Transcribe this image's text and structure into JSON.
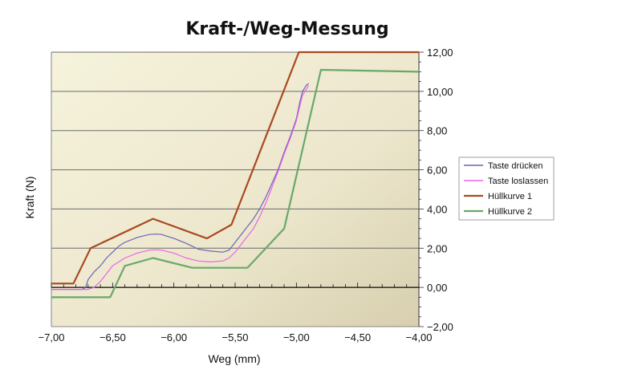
{
  "chart_data": {
    "type": "line",
    "title": "Kraft-/Weg-Messung",
    "xlabel": "Weg (mm)",
    "ylabel": "Kraft (N)",
    "xlim": [
      -7.0,
      -4.0
    ],
    "ylim": [
      -2.0,
      12.0
    ],
    "x_ticks": [
      "−7,00",
      "−6,50",
      "−6,00",
      "−5,50",
      "−5,00",
      "−4,50",
      "−4,00"
    ],
    "x_tick_values": [
      -7.0,
      -6.5,
      -6.0,
      -5.5,
      -5.0,
      -4.5,
      -4.0
    ],
    "y_ticks": [
      "−2,00",
      "0,00",
      "2,00",
      "4,00",
      "6,00",
      "8,00",
      "10,00",
      "12,00"
    ],
    "y_tick_values": [
      -2,
      0,
      2,
      4,
      6,
      8,
      10,
      12
    ],
    "y_axis_side": "right",
    "grid": "horizontal",
    "legend_position": "right",
    "series": [
      {
        "name": "Taste drücken",
        "color": "#6a64b8",
        "x": [
          -7.0,
          -6.9,
          -6.8,
          -6.75,
          -6.72,
          -6.7,
          -6.65,
          -6.6,
          -6.55,
          -6.5,
          -6.45,
          -6.4,
          -6.3,
          -6.2,
          -6.15,
          -6.1,
          -6.0,
          -5.9,
          -5.8,
          -5.7,
          -5.6,
          -5.55,
          -5.5,
          -5.45,
          -5.4,
          -5.35,
          -5.3,
          -5.25,
          -5.2,
          -5.15,
          -5.1,
          -5.05,
          -5.0,
          -4.97,
          -4.95,
          -4.92,
          -4.9
        ],
        "y": [
          -0.1,
          -0.1,
          -0.1,
          -0.1,
          0.0,
          0.4,
          0.8,
          1.1,
          1.5,
          1.8,
          2.1,
          2.3,
          2.55,
          2.7,
          2.72,
          2.7,
          2.5,
          2.25,
          1.95,
          1.85,
          1.8,
          1.9,
          2.3,
          2.7,
          3.1,
          3.5,
          4.0,
          4.6,
          5.3,
          6.0,
          6.9,
          7.7,
          8.6,
          9.5,
          10.0,
          10.3,
          10.4
        ]
      },
      {
        "name": "Taste loslassen",
        "color": "#e865e8",
        "x": [
          -7.0,
          -6.8,
          -6.7,
          -6.65,
          -6.6,
          -6.55,
          -6.5,
          -6.4,
          -6.3,
          -6.2,
          -6.15,
          -6.1,
          -6.0,
          -5.9,
          -5.8,
          -5.7,
          -5.6,
          -5.55,
          -5.5,
          -5.45,
          -5.4,
          -5.35,
          -5.3,
          -5.25,
          -5.2,
          -5.15,
          -5.1,
          -5.05,
          -5.0,
          -4.97,
          -4.95,
          -4.92,
          -4.9
        ],
        "y": [
          -0.1,
          -0.1,
          -0.1,
          0.0,
          0.3,
          0.7,
          1.1,
          1.5,
          1.75,
          1.9,
          1.92,
          1.9,
          1.75,
          1.5,
          1.35,
          1.3,
          1.35,
          1.5,
          1.8,
          2.2,
          2.6,
          3.0,
          3.6,
          4.3,
          5.1,
          5.9,
          6.8,
          7.6,
          8.5,
          9.3,
          9.8,
          10.1,
          10.3
        ]
      },
      {
        "name": "Hüllkurve 1",
        "color": "#a84a22",
        "x": [
          -7.0,
          -6.82,
          -6.68,
          -6.17,
          -5.73,
          -5.53,
          -4.98,
          -4.0
        ],
        "y": [
          0.2,
          0.2,
          2.0,
          3.5,
          2.5,
          3.2,
          12.0,
          12.0
        ]
      },
      {
        "name": "Hüllkurve 2",
        "color": "#6aa86a",
        "x": [
          -7.0,
          -6.52,
          -6.4,
          -6.17,
          -5.85,
          -5.4,
          -5.1,
          -4.8,
          -4.0
        ],
        "y": [
          -0.5,
          -0.5,
          1.1,
          1.5,
          1.0,
          1.0,
          3.0,
          11.1,
          11.0
        ]
      }
    ]
  }
}
